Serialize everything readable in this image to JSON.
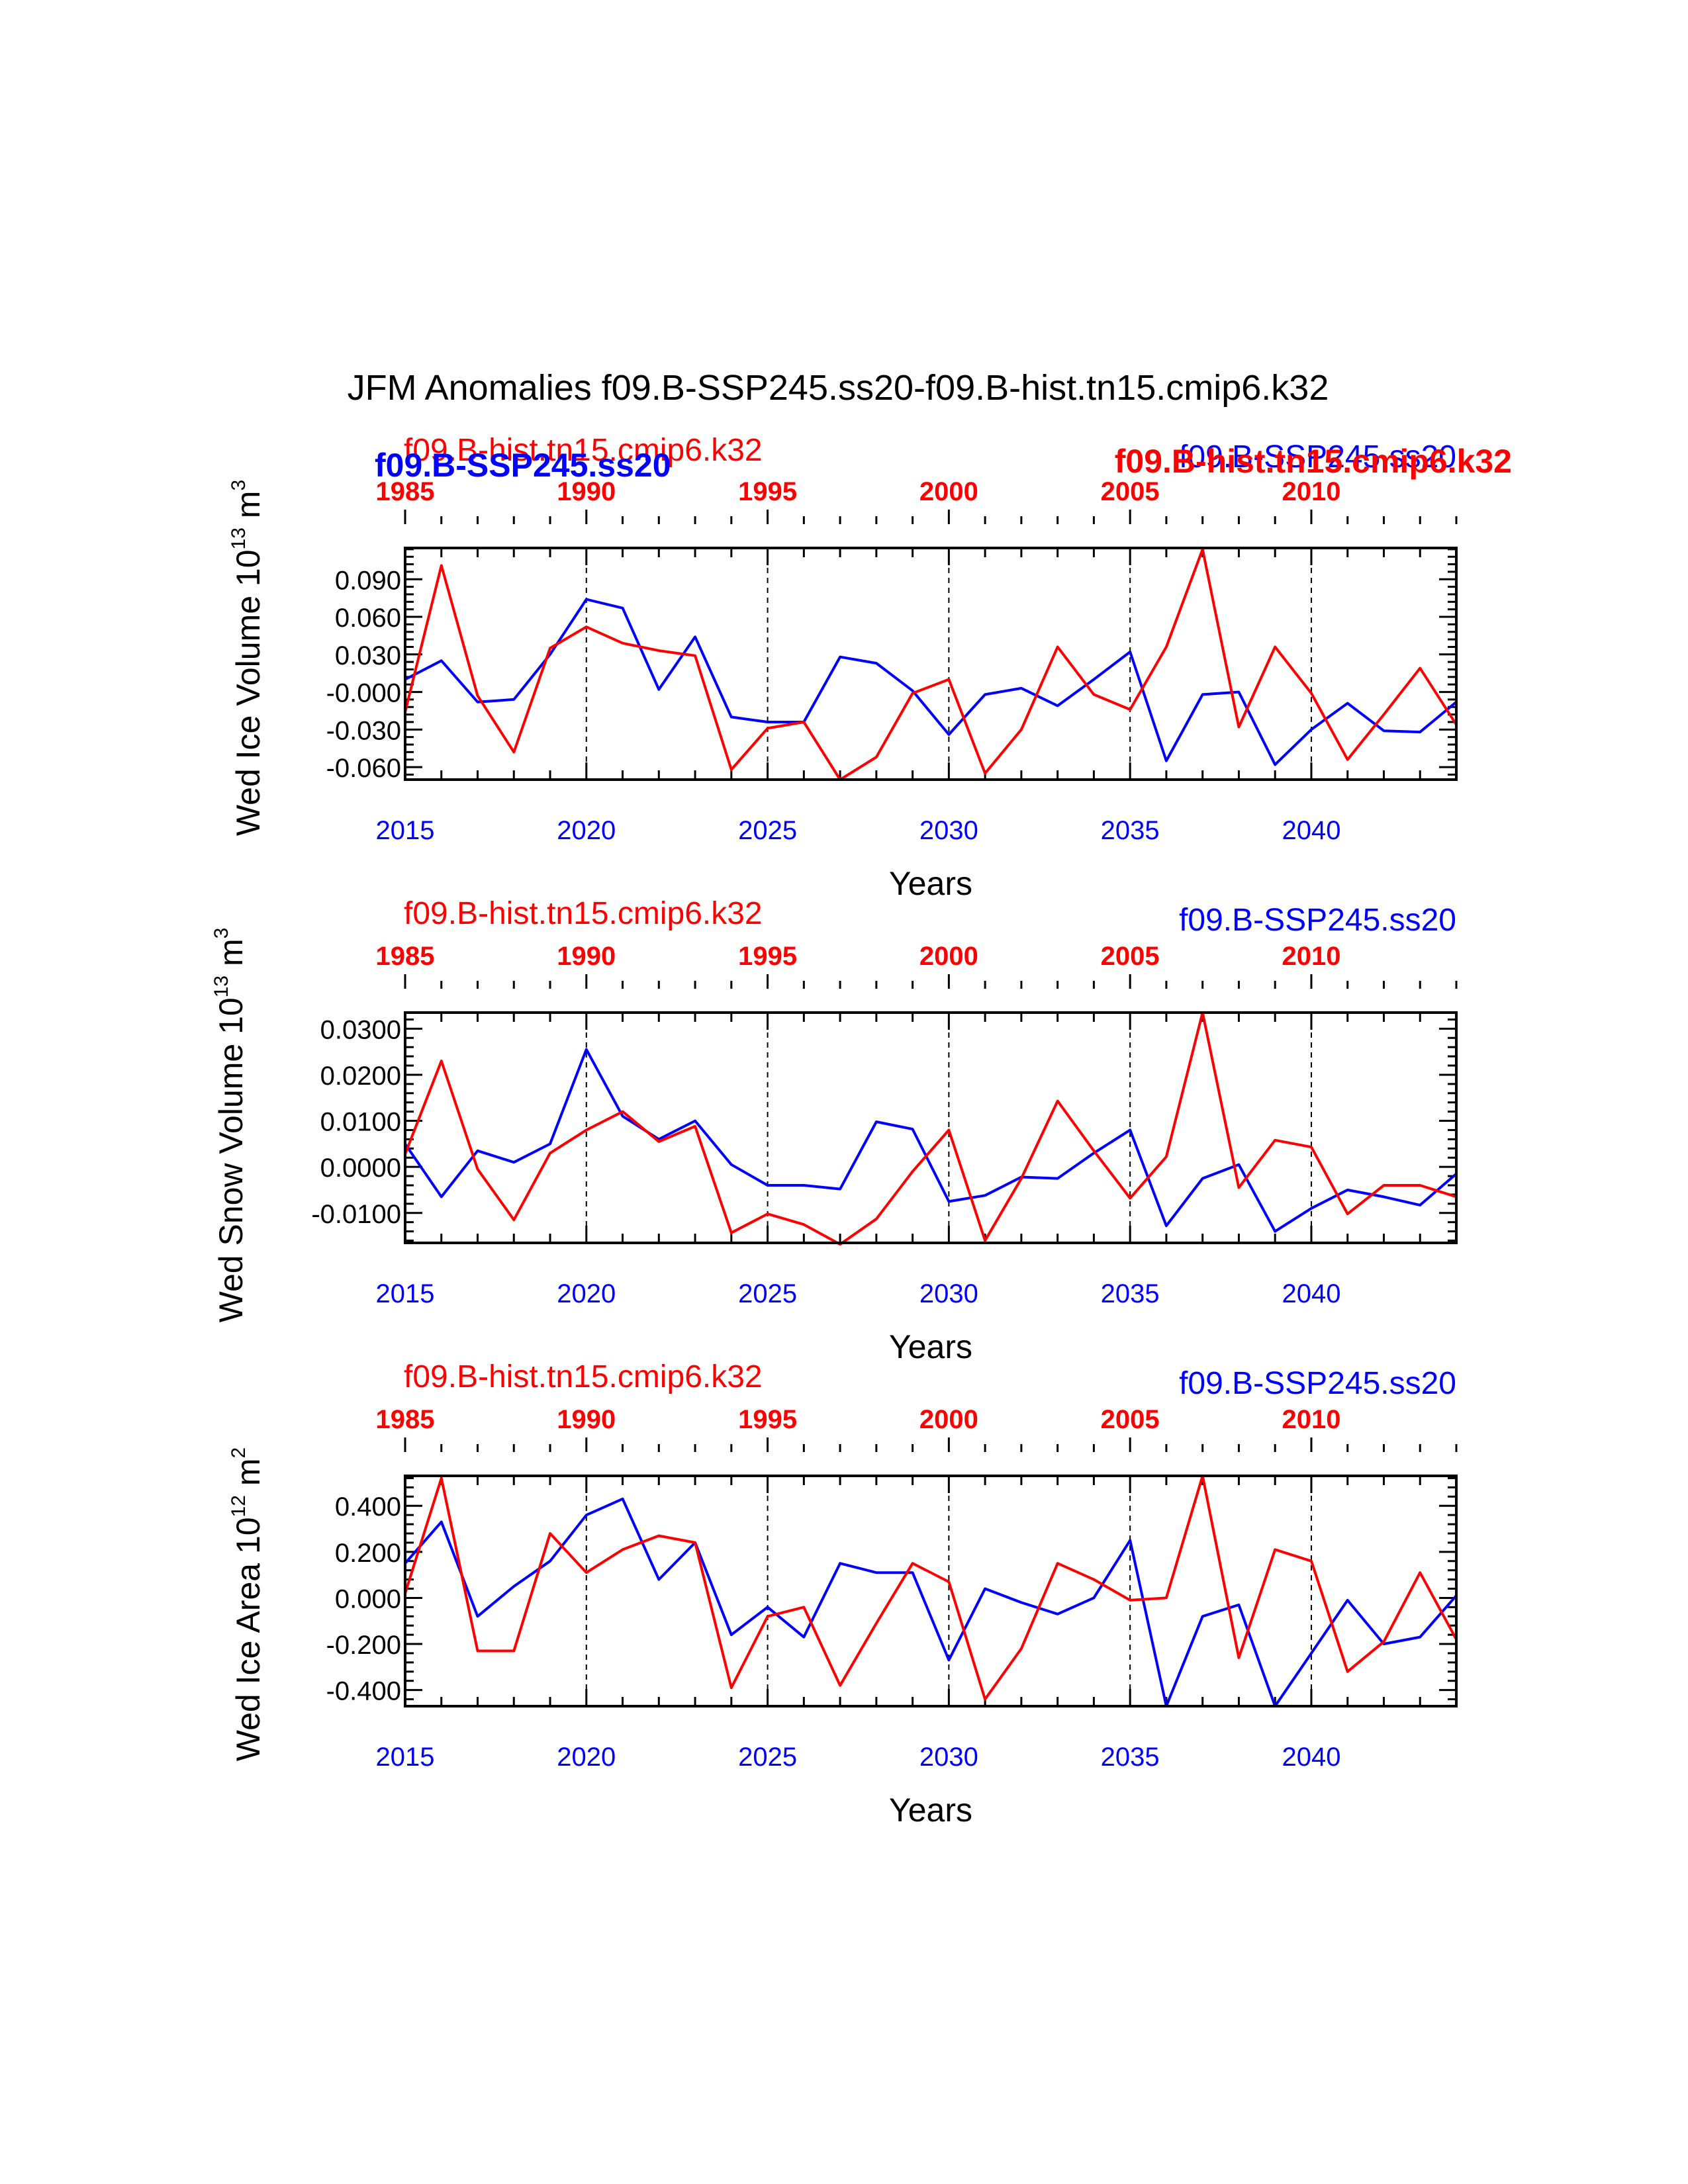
{
  "figure": {
    "title": "JFM Anomalies f09.B-SSP245.ss20-f09.B-hist.tn15.cmip6.k32",
    "colors": {
      "ssp": "#0000ff",
      "hist": "#ff0000",
      "axis": "#000000"
    }
  },
  "chart_data": [
    {
      "type": "line",
      "ylabel": "Wed Ice Volume 10",
      "ylabel_exp": "13",
      "ylabel_unit": "m",
      "ylabel_unit_exp": "3",
      "xlabel": "Years",
      "hist_label": "f09.B-hist.tn15.cmip6.k32",
      "ssp_label": "f09.B-SSP245.ss20",
      "overlap_labels": {
        "ssp_bold": "f09.B-SSP245.ss20",
        "hist_bold": "f09.B-hist.tn15.cmip6.k32"
      },
      "xlim": [
        2015,
        2044
      ],
      "ylim": [
        -0.07,
        0.115
      ],
      "yticks": [
        0.09,
        0.06,
        0.03,
        0.0,
        -0.03,
        -0.06
      ],
      "ytick_labels": [
        "0.090",
        "0.060",
        "0.030",
        "-0.000",
        "-0.030",
        "-0.060"
      ],
      "bottom_ticks": [
        2015,
        2020,
        2025,
        2030,
        2035,
        2040
      ],
      "top_tick_labels": [
        "1985",
        "1990",
        "1995",
        "2000",
        "2005",
        "2010"
      ],
      "x": [
        2015,
        2016,
        2017,
        2018,
        2019,
        2020,
        2021,
        2022,
        2023,
        2024,
        2025,
        2026,
        2027,
        2028,
        2029,
        2030,
        2031,
        2032,
        2033,
        2034,
        2035,
        2036,
        2037,
        2038,
        2039,
        2040,
        2041,
        2042,
        2043,
        2044
      ],
      "series": [
        {
          "name": "f09.B-SSP245.ss20",
          "color": "#0000ff",
          "values": [
            0.01,
            0.025,
            -0.008,
            -0.006,
            0.03,
            0.074,
            0.067,
            0.002,
            0.044,
            -0.02,
            -0.024,
            -0.024,
            0.028,
            0.023,
            0.001,
            -0.034,
            -0.002,
            0.003,
            -0.011,
            0.01,
            0.032,
            -0.055,
            -0.002,
            0.0,
            -0.058,
            -0.03,
            -0.009,
            -0.031,
            -0.032,
            -0.008
          ]
        },
        {
          "name": "f09.B-hist.tn15.cmip6.k32",
          "color": "#ff0000",
          "values": [
            -0.016,
            0.101,
            -0.003,
            -0.048,
            0.035,
            0.052,
            0.039,
            0.033,
            0.029,
            -0.062,
            -0.029,
            -0.024,
            -0.07,
            -0.052,
            -0.001,
            0.01,
            -0.065,
            -0.03,
            0.036,
            -0.002,
            -0.014,
            0.036,
            0.114,
            -0.028,
            0.036,
            -0.001,
            -0.054,
            -0.018,
            0.019,
            -0.026
          ]
        }
      ]
    },
    {
      "type": "line",
      "ylabel": "Wed Snow Volume 10",
      "ylabel_exp": "13",
      "ylabel_unit": "m",
      "ylabel_unit_exp": "3",
      "xlabel": "Years",
      "hist_label": "f09.B-hist.tn15.cmip6.k32",
      "ssp_label": "f09.B-SSP245.ss20",
      "xlim": [
        2015,
        2044
      ],
      "ylim": [
        -0.0165,
        0.0335
      ],
      "yticks": [
        0.03,
        0.02,
        0.01,
        0.0,
        -0.01
      ],
      "ytick_labels": [
        "0.0300",
        "0.0200",
        "0.0100",
        "0.0000",
        "-0.0100"
      ],
      "bottom_ticks": [
        2015,
        2020,
        2025,
        2030,
        2035,
        2040
      ],
      "top_tick_labels": [
        "1985",
        "1990",
        "1995",
        "2000",
        "2005",
        "2010"
      ],
      "x": [
        2015,
        2016,
        2017,
        2018,
        2019,
        2020,
        2021,
        2022,
        2023,
        2024,
        2025,
        2026,
        2027,
        2028,
        2029,
        2030,
        2031,
        2032,
        2033,
        2034,
        2035,
        2036,
        2037,
        2038,
        2039,
        2040,
        2041,
        2042,
        2043,
        2044
      ],
      "series": [
        {
          "name": "f09.B-SSP245.ss20",
          "color": "#0000ff",
          "values": [
            0.005,
            -0.0065,
            0.0035,
            0.001,
            0.005,
            0.0255,
            0.011,
            0.006,
            0.01,
            0.0005,
            -0.004,
            -0.004,
            -0.0048,
            0.0098,
            0.0082,
            -0.0075,
            -0.0062,
            -0.0022,
            -0.0025,
            0.003,
            0.008,
            -0.0128,
            -0.0025,
            0.0005,
            -0.014,
            -0.009,
            -0.005,
            -0.0065,
            -0.0083,
            -0.0015
          ]
        },
        {
          "name": "f09.B-hist.tn15.cmip6.k32",
          "color": "#ff0000",
          "values": [
            0.0028,
            0.023,
            -0.0005,
            -0.0115,
            0.003,
            0.008,
            0.012,
            0.0055,
            0.0088,
            -0.0143,
            -0.0102,
            -0.0125,
            -0.0168,
            -0.0113,
            -0.001,
            0.008,
            -0.016,
            -0.0025,
            0.0143,
            0.0035,
            -0.0068,
            0.0022,
            0.0335,
            -0.0045,
            0.0058,
            0.0043,
            -0.0102,
            -0.004,
            -0.004,
            -0.0065
          ]
        }
      ]
    },
    {
      "type": "line",
      "ylabel": "Wed Ice Area 10",
      "ylabel_exp": "12",
      "ylabel_unit": "m",
      "ylabel_unit_exp": "2",
      "xlabel": "Years",
      "hist_label": "f09.B-hist.tn15.cmip6.k32",
      "ssp_label": "f09.B-SSP245.ss20",
      "xlim": [
        2015,
        2044
      ],
      "ylim": [
        -0.47,
        0.53
      ],
      "yticks": [
        0.4,
        0.2,
        0.0,
        -0.2,
        -0.4
      ],
      "ytick_labels": [
        "0.400",
        "0.200",
        "0.000",
        "-0.200",
        "-0.400"
      ],
      "bottom_ticks": [
        2015,
        2020,
        2025,
        2030,
        2035,
        2040
      ],
      "top_tick_labels": [
        "1985",
        "1990",
        "1995",
        "2000",
        "2005",
        "2010"
      ],
      "x": [
        2015,
        2016,
        2017,
        2018,
        2019,
        2020,
        2021,
        2022,
        2023,
        2024,
        2025,
        2026,
        2027,
        2028,
        2029,
        2030,
        2031,
        2032,
        2033,
        2034,
        2035,
        2036,
        2037,
        2038,
        2039,
        2040,
        2041,
        2042,
        2043,
        2044
      ],
      "series": [
        {
          "name": "f09.B-SSP245.ss20",
          "color": "#0000ff",
          "values": [
            0.15,
            0.33,
            -0.08,
            0.05,
            0.16,
            0.36,
            0.43,
            0.08,
            0.24,
            -0.16,
            -0.04,
            -0.17,
            0.15,
            0.11,
            0.11,
            -0.27,
            0.04,
            -0.02,
            -0.07,
            0.0,
            0.25,
            -0.47,
            -0.08,
            -0.03,
            -0.47,
            -0.24,
            -0.01,
            -0.2,
            -0.17,
            0.01
          ]
        },
        {
          "name": "f09.B-hist.tn15.cmip6.k32",
          "color": "#ff0000",
          "values": [
            0.02,
            0.52,
            -0.23,
            -0.23,
            0.28,
            0.11,
            0.21,
            0.27,
            0.24,
            -0.39,
            -0.08,
            -0.04,
            -0.38,
            -0.11,
            0.15,
            0.07,
            -0.44,
            -0.22,
            0.15,
            0.08,
            -0.01,
            0.0,
            0.53,
            -0.26,
            0.21,
            0.16,
            -0.32,
            -0.19,
            0.11,
            -0.18
          ]
        }
      ]
    }
  ]
}
